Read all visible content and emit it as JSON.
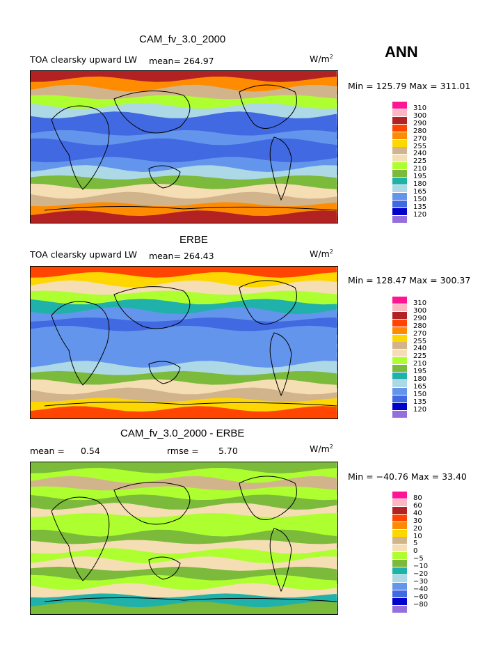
{
  "season": "ANN",
  "unit_prefix": "W/m",
  "unit_exp": "2",
  "chart_data": [
    {
      "type": "heatmap",
      "title": "CAM_fv_3.0_2000",
      "variable": "TOA clearsky upward LW",
      "mean_text": "mean= 264.97",
      "minmax_text": "Min = 125.79 Max = 311.01",
      "levels": [
        "310",
        "300",
        "290",
        "280",
        "270",
        "255",
        "240",
        "225",
        "210",
        "195",
        "180",
        "165",
        "150",
        "135",
        "120"
      ],
      "colors": [
        "#ff1493",
        "#ffb6c1",
        "#b22222",
        "#ff4500",
        "#ff8c00",
        "#ffd700",
        "#d2b48c",
        "#f5deb3",
        "#adff2f",
        "#7cba3c",
        "#20b2aa",
        "#add8e6",
        "#6495ed",
        "#4169e1",
        "#0000cd",
        "#9370db"
      ],
      "zonal_levels": [
        2,
        4,
        6,
        8,
        11,
        13,
        13,
        12,
        13,
        13,
        12,
        11,
        9,
        7,
        6,
        4,
        2
      ]
    },
    {
      "type": "heatmap",
      "title": "ERBE",
      "variable": "TOA clearsky upward LW",
      "mean_text": "mean= 264.43",
      "minmax_text": "Min = 128.47 Max = 300.37",
      "levels": [
        "310",
        "300",
        "290",
        "280",
        "270",
        "255",
        "240",
        "225",
        "210",
        "195",
        "180",
        "165",
        "150",
        "135",
        "120"
      ],
      "colors": [
        "#ff1493",
        "#ffb6c1",
        "#b22222",
        "#ff4500",
        "#ff8c00",
        "#ffd700",
        "#d2b48c",
        "#f5deb3",
        "#adff2f",
        "#7cba3c",
        "#20b2aa",
        "#add8e6",
        "#6495ed",
        "#4169e1",
        "#0000cd",
        "#9370db"
      ],
      "zonal_levels": [
        3,
        5,
        7,
        8,
        10,
        12,
        13,
        12,
        12,
        12,
        12,
        11,
        9,
        7,
        6,
        5,
        3
      ]
    },
    {
      "type": "heatmap",
      "title": "CAM_fv_3.0_2000 - ERBE",
      "mean_label": "mean =",
      "mean_value": "0.54",
      "rmse_label": "rmse =",
      "rmse_value": "5.70",
      "minmax_text": "Min = −40.76 Max =  33.40",
      "levels": [
        "80",
        "60",
        "40",
        "30",
        "20",
        "10",
        "5",
        "0",
        "−5",
        "−10",
        "−20",
        "−30",
        "−40",
        "−60",
        "−80"
      ],
      "colors": [
        "#ff1493",
        "#ffb6c1",
        "#b22222",
        "#ff4500",
        "#ff8c00",
        "#ffd700",
        "#d2b48c",
        "#f5deb3",
        "#adff2f",
        "#7cba3c",
        "#20b2aa",
        "#add8e6",
        "#6495ed",
        "#4169e1",
        "#0000cd",
        "#9370db"
      ],
      "zonal_levels": [
        9,
        8,
        6,
        8,
        9,
        7,
        8,
        8,
        9,
        7,
        8,
        7,
        9,
        8,
        7,
        10,
        9
      ]
    }
  ]
}
